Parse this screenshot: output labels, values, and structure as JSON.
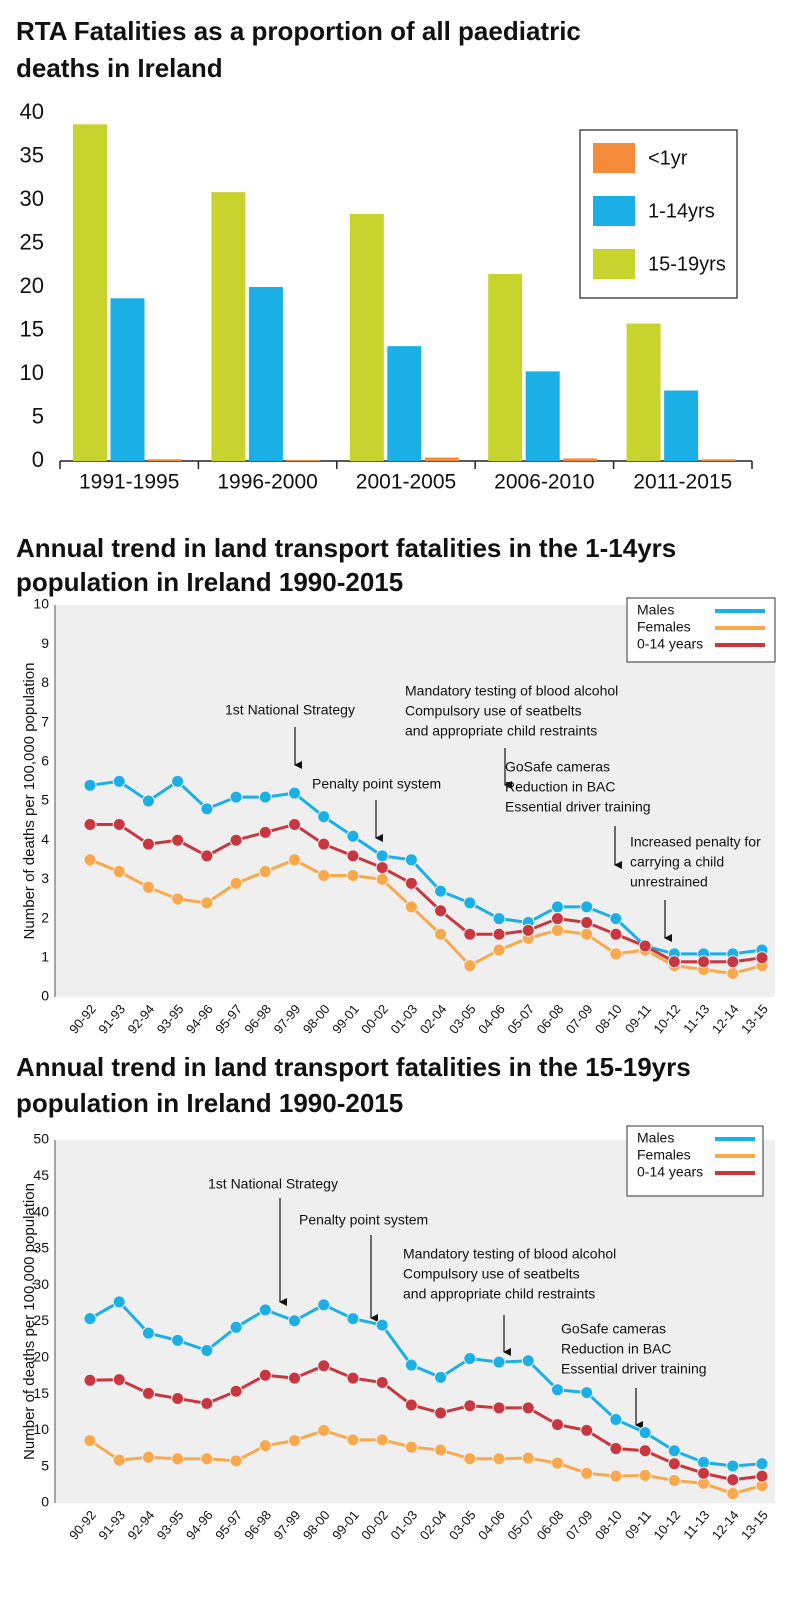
{
  "chart_data": [
    {
      "type": "bar",
      "title": [
        "RTA Fatalities as a proportion of all paediatric",
        "deaths in Ireland"
      ],
      "categories": [
        "1991-1995",
        "1996-2000",
        "2001-2005",
        "2006-2010",
        "2011-2015"
      ],
      "series": [
        {
          "name": "<1yr",
          "color": "#f58a3a",
          "values": [
            0.2,
            0.1,
            0.4,
            0.3,
            0.2
          ]
        },
        {
          "name": "1-14yrs",
          "color": "#1ab0e6",
          "values": [
            18.7,
            20,
            13.2,
            10.3,
            8.1
          ]
        },
        {
          "name": "15-19yrs",
          "color": "#c8d32e",
          "values": [
            38.7,
            30.9,
            28.4,
            21.5,
            15.8
          ]
        }
      ],
      "ylim": [
        0,
        40
      ],
      "yticks": [
        0,
        5,
        10,
        15,
        20,
        25,
        30,
        35,
        40
      ],
      "legend": "top-right"
    },
    {
      "type": "line",
      "title": [
        "Annual trend in land transport fatalities in the 1-14yrs",
        "population in Ireland 1990-2015"
      ],
      "y_label": "Number of deaths per 100,000 population",
      "categories": [
        "90-92",
        "91-93",
        "92-94",
        "93-95",
        "94-96",
        "95-97",
        "96-98",
        "97-99",
        "98-00",
        "99-01",
        "00-02",
        "01-03",
        "02-04",
        "03-05",
        "04-06",
        "05-07",
        "06-08",
        "07-09",
        "08-10",
        "09-11",
        "10-12",
        "11-13",
        "12-14",
        "13-15"
      ],
      "series": [
        {
          "name": "Males",
          "color": "#1ab0e6",
          "values": [
            5.4,
            5.5,
            5.0,
            5.5,
            4.8,
            5.1,
            5.1,
            5.2,
            4.6,
            4.1,
            3.6,
            3.5,
            2.7,
            2.4,
            2.0,
            1.9,
            2.3,
            2.3,
            2.0,
            1.3,
            1.1,
            1.1,
            1.1,
            1.2
          ]
        },
        {
          "name": "Females",
          "color": "#f9a94b",
          "values": [
            3.5,
            3.2,
            2.8,
            2.5,
            2.4,
            2.9,
            3.2,
            3.5,
            3.1,
            3.1,
            3.0,
            2.3,
            1.6,
            0.8,
            1.2,
            1.5,
            1.7,
            1.6,
            1.1,
            1.2,
            0.8,
            0.7,
            0.6,
            0.8
          ]
        },
        {
          "name": "0-14 years",
          "color": "#c8373f",
          "values": [
            4.4,
            4.4,
            3.9,
            4.0,
            3.6,
            4.0,
            4.2,
            4.4,
            3.9,
            3.6,
            3.3,
            2.9,
            2.2,
            1.6,
            1.6,
            1.7,
            2.0,
            1.9,
            1.6,
            1.3,
            0.9,
            0.9,
            0.9,
            1.0
          ]
        }
      ],
      "ylim": [
        0,
        10
      ],
      "yticks": [
        0,
        1,
        2,
        3,
        4,
        5,
        6,
        7,
        8,
        9,
        10
      ],
      "legend": "top-right",
      "annotations": [
        [
          "1st National Strategy"
        ],
        [
          "Penalty point system"
        ],
        [
          "Mandatory testing of blood alcohol",
          "Compulsory use of seatbelts",
          "and appropriate child restraints"
        ],
        [
          "GoSafe cameras",
          "Reduction in BAC",
          "Essential driver training"
        ],
        [
          "Increased penalty for",
          "carrying a child",
          "unrestrained"
        ]
      ]
    },
    {
      "type": "line",
      "title": [
        "Annual trend in land transport fatalities in the 15-19yrs",
        "population in Ireland 1990-2015"
      ],
      "y_label": "Number of deaths per 100,000 population",
      "categories": [
        "90-92",
        "91-93",
        "92-94",
        "93-95",
        "94-96",
        "95-97",
        "96-98",
        "97-99",
        "98-00",
        "99-01",
        "00-02",
        "01-03",
        "02-04",
        "03-05",
        "04-06",
        "05-07",
        "06-08",
        "07-09",
        "08-10",
        "09-11",
        "10-12",
        "11-13",
        "12-14",
        "13-15"
      ],
      "series": [
        {
          "name": "Males",
          "color": "#1ab0e6",
          "values": [
            25.4,
            27.7,
            23.4,
            22.4,
            21.0,
            24.2,
            26.6,
            25.1,
            27.3,
            25.4,
            24.5,
            19.0,
            17.3,
            19.9,
            19.4,
            19.6,
            15.6,
            15.2,
            11.5,
            9.7,
            7.2,
            5.6,
            5.1,
            5.4
          ]
        },
        {
          "name": "Females",
          "color": "#f9a94b",
          "values": [
            8.6,
            5.9,
            6.3,
            6.1,
            6.1,
            5.8,
            7.9,
            8.6,
            10.0,
            8.7,
            8.7,
            7.7,
            7.3,
            6.1,
            6.1,
            6.2,
            5.5,
            4.1,
            3.7,
            3.8,
            3.1,
            2.7,
            1.3,
            2.4
          ]
        },
        {
          "name": "0-14 years",
          "color": "#c8373f",
          "values": [
            16.9,
            17.0,
            15.1,
            14.4,
            13.7,
            15.4,
            17.6,
            17.2,
            18.9,
            17.2,
            16.6,
            13.5,
            12.4,
            13.4,
            13.1,
            13.1,
            10.8,
            10.0,
            7.5,
            7.2,
            5.4,
            4.1,
            3.2,
            3.7
          ]
        }
      ],
      "ylim": [
        0,
        50
      ],
      "yticks": [
        0,
        5,
        10,
        15,
        20,
        25,
        30,
        35,
        40,
        45,
        50
      ],
      "legend": "top-right",
      "annotations": [
        [
          "1st National Strategy"
        ],
        [
          "Penalty point system"
        ],
        [
          "Mandatory testing of blood alcohol",
          "Compulsory use of seatbelts",
          "and appropriate child restraints"
        ],
        [
          "GoSafe cameras",
          "Reduction in BAC",
          "Essential driver training"
        ]
      ]
    }
  ]
}
